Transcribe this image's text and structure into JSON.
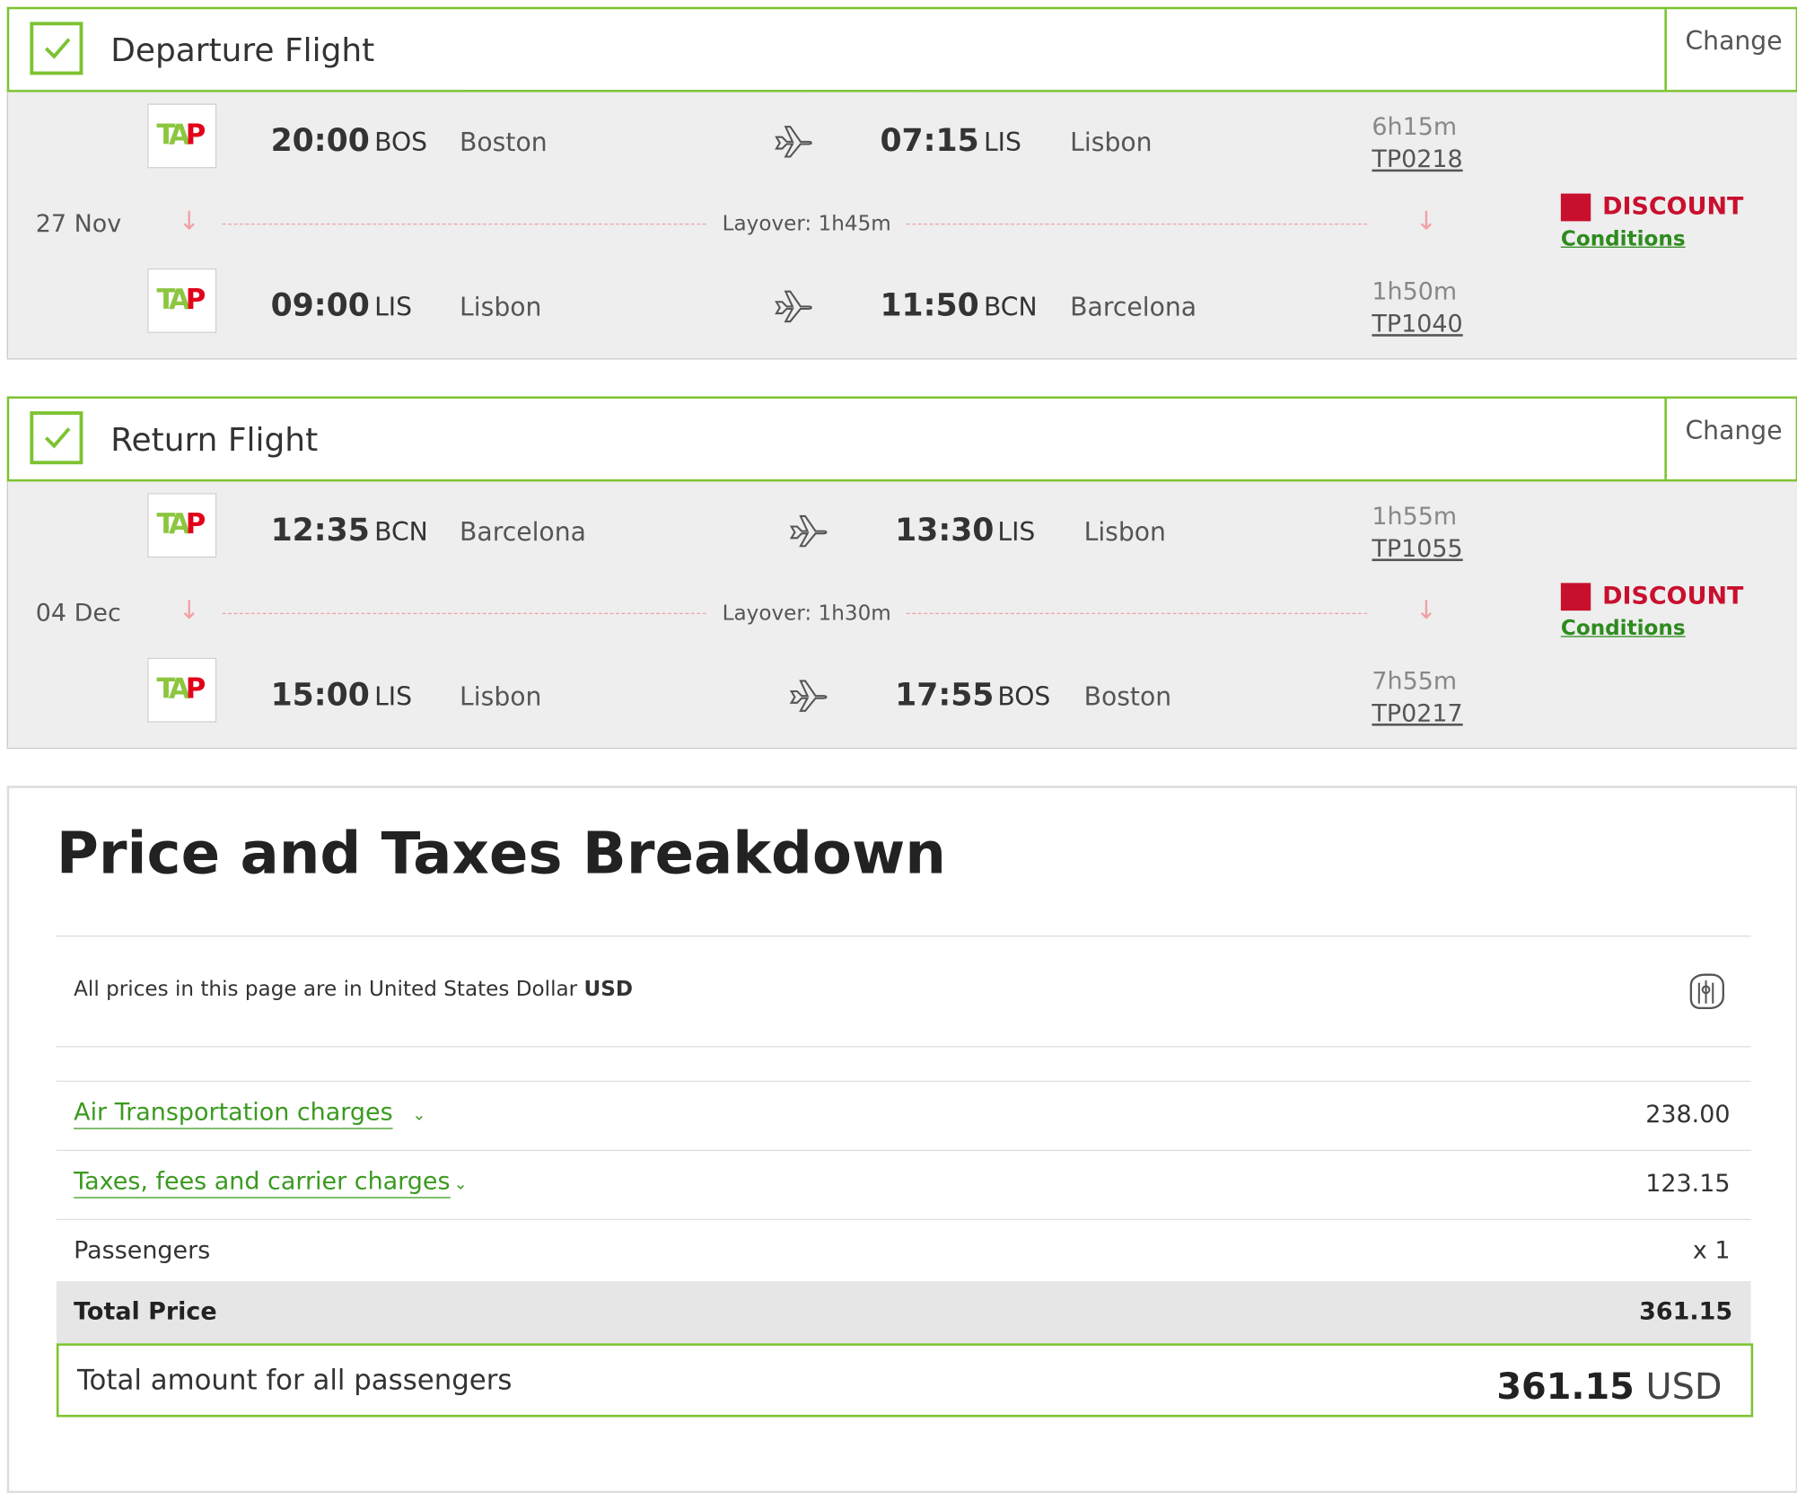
{
  "departure": {
    "title": "Departure Flight",
    "change_label": "Change",
    "date": "27 Nov",
    "layover": "Layover: 1h45m",
    "discount_label": "DISCOUNT",
    "conditions_label": "Conditions",
    "legs": [
      {
        "dep_time": "20:00",
        "dep_code": "BOS",
        "dep_city": "Boston",
        "arr_time": "07:15",
        "arr_code": "LIS",
        "arr_city": "Lisbon",
        "duration": "6h15m",
        "flight_no": "TP0218"
      },
      {
        "dep_time": "09:00",
        "dep_code": "LIS",
        "dep_city": "Lisbon",
        "arr_time": "11:50",
        "arr_code": "BCN",
        "arr_city": "Barcelona",
        "duration": "1h50m",
        "flight_no": "TP1040"
      }
    ]
  },
  "return": {
    "title": "Return Flight",
    "change_label": "Change",
    "date": "04 Dec",
    "layover": "Layover: 1h30m",
    "discount_label": "DISCOUNT",
    "conditions_label": "Conditions",
    "legs": [
      {
        "dep_time": "12:35",
        "dep_code": "BCN",
        "dep_city": "Barcelona",
        "arr_time": "13:30",
        "arr_code": "LIS",
        "arr_city": "Lisbon",
        "duration": "1h55m",
        "flight_no": "TP1055"
      },
      {
        "dep_time": "15:00",
        "dep_code": "LIS",
        "dep_city": "Lisbon",
        "arr_time": "17:55",
        "arr_code": "BOS",
        "arr_city": "Boston",
        "duration": "7h55m",
        "flight_no": "TP0217"
      }
    ]
  },
  "airline_logo_text": "TAP",
  "price": {
    "title": "Price and Taxes Breakdown",
    "currency_note": "All prices in this page are in United States Dollar",
    "currency_code": "USD",
    "rows": [
      {
        "label": "Air Transportation charges",
        "value": "238.00"
      },
      {
        "label": "Taxes, fees and carrier charges",
        "value": "123.15"
      }
    ],
    "passengers_label": "Passengers",
    "passengers_value": "x 1",
    "total_label": "Total Price",
    "total_value": "361.15",
    "grand_label": "Total amount for all passengers",
    "grand_amount": "361.15",
    "grand_currency": "USD"
  },
  "colors": {
    "accent_green": "#7cc331",
    "link_green": "#3a9a1f",
    "discount_red": "#c8102e"
  },
  "icons": [
    "check-icon",
    "airplane-icon",
    "down-arrow-icon",
    "discount-icon",
    "currency-exchange-icon",
    "chevron-down-icon"
  ]
}
